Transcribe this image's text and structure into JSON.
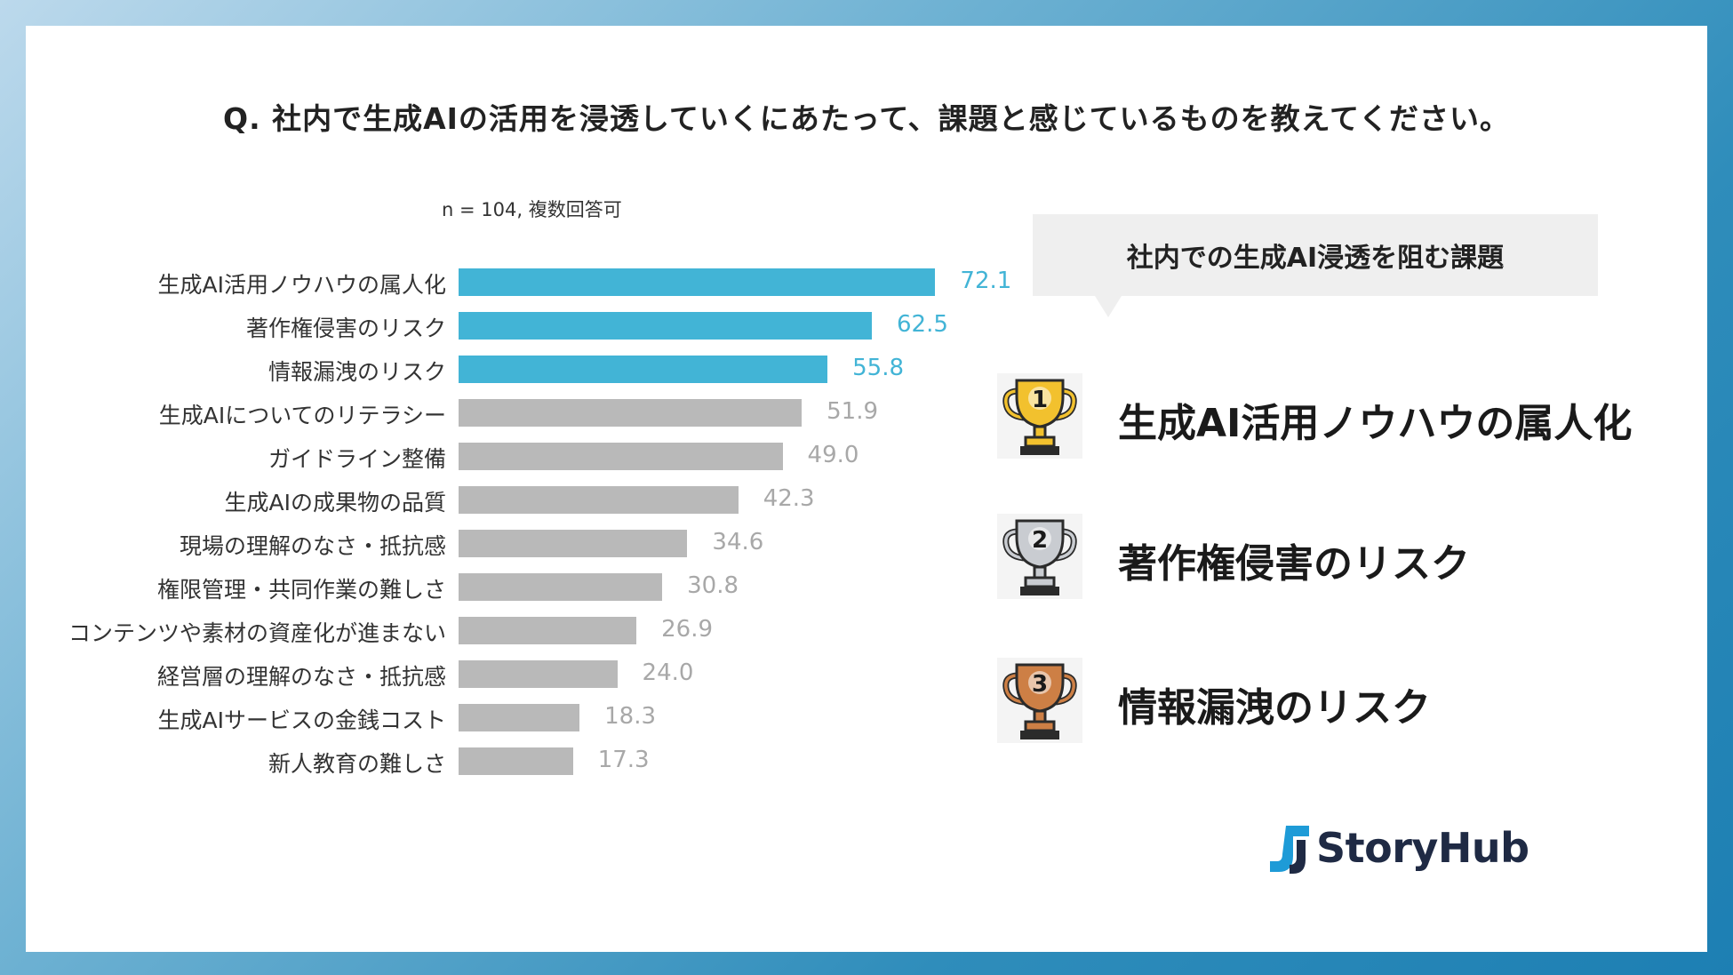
{
  "question": "Q. 社内で生成AIの活用を浸透していくにあたって、課題と感じているものを教えてください。",
  "note": "n = 104, 複数回答可",
  "chart_data": {
    "type": "bar",
    "orientation": "horizontal",
    "categories": [
      "生成AI活用ノウハウの属人化",
      "著作権侵害のリスク",
      "情報漏洩のリスク",
      "生成AIについてのリテラシー",
      "ガイドライン整備",
      "生成AIの成果物の品質",
      "現場の理解のなさ・抵抗感",
      "権限管理・共同作業の難しさ",
      "コンテンツや素材の資産化が進まない",
      "経営層の理解のなさ・抵抗感",
      "生成AIサービスの金銭コスト",
      "新人教育の難しさ"
    ],
    "values": [
      72.1,
      62.5,
      55.8,
      51.9,
      49.0,
      42.3,
      34.6,
      30.8,
      26.9,
      24.0,
      18.3,
      17.3
    ],
    "value_labels": [
      "72.1",
      "62.5",
      "55.8",
      "51.9",
      "49.0",
      "42.3",
      "34.6",
      "30.8",
      "26.9",
      "24.0",
      "18.3",
      "17.3"
    ],
    "highlight_count": 3,
    "colors": {
      "highlight": "#42b4d6",
      "normal": "#b9b9b9",
      "normal_label": "#a8a8a8"
    }
  },
  "callout": {
    "title": "社内での生成AI浸透を阻む課題"
  },
  "ranking": [
    {
      "rank": "1",
      "label": "生成AI活用ノウハウの属人化",
      "trophy_color": "#f2c12e"
    },
    {
      "rank": "2",
      "label": "著作権侵害のリスク",
      "trophy_color": "#c9ccd1"
    },
    {
      "rank": "3",
      "label": "情報漏洩のリスク",
      "trophy_color": "#cd7f45"
    }
  ],
  "brand": {
    "name": "StoryHub",
    "color": "#1f2a44",
    "accent": "#1e9bd7"
  }
}
